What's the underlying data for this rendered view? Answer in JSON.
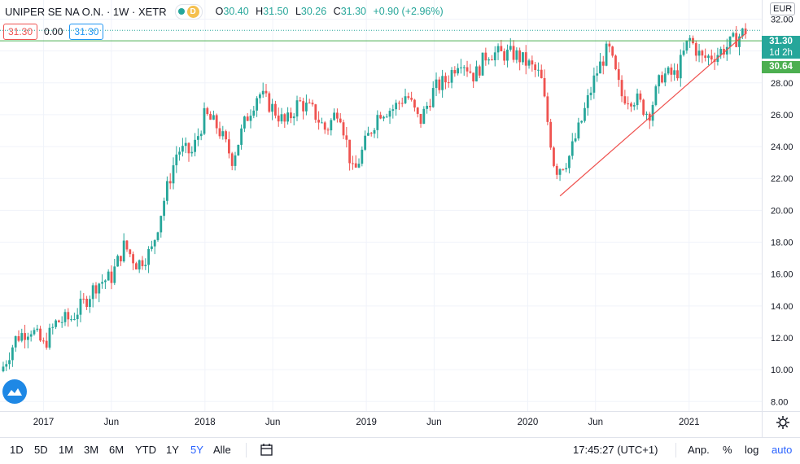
{
  "header": {
    "symbol": "UNIPER SE NA O.N. · 1W · XETR",
    "badge_letter": "D",
    "open_label": "O",
    "open": "30.40",
    "high_label": "H",
    "high": "31.50",
    "low_label": "L",
    "low": "30.26",
    "close_label": "C",
    "close": "31.30",
    "change": "+0.90 (+2.96%)"
  },
  "orders": {
    "sell": "31.30",
    "spread": "0.00",
    "buy": "31.30"
  },
  "currency": "EUR",
  "price_tags": {
    "last": "31.30",
    "countdown": "1d 2h",
    "line": "30.64"
  },
  "toolbar": {
    "ranges": [
      "1D",
      "5D",
      "1M",
      "3M",
      "6M",
      "YTD",
      "1Y",
      "5Y",
      "Alle"
    ],
    "selected": "5Y",
    "clock": "17:45:27 (UTC+1)",
    "adjust": "Anp.",
    "percent": "%",
    "log": "log",
    "auto": "auto"
  },
  "colors": {
    "up": "#26a69a",
    "down": "#ef5350",
    "hline": "#4caf50",
    "trend": "#ef5350",
    "grid": "#f0f3fa"
  },
  "chart_data": {
    "type": "candlestick",
    "interval": "1W",
    "ylim": [
      7.4,
      33.2
    ],
    "y_ticks": [
      "32.00",
      "30.00",
      "28.00",
      "26.00",
      "24.00",
      "22.00",
      "20.00",
      "18.00",
      "16.00",
      "14.00",
      "12.00",
      "10.00",
      "8.00"
    ],
    "x_ticks": [
      {
        "label": "2017",
        "t": 2017.0
      },
      {
        "label": "Jun",
        "t": 2017.42
      },
      {
        "label": "2018",
        "t": 2018.0
      },
      {
        "label": "Jun",
        "t": 2018.42
      },
      {
        "label": "2019",
        "t": 2019.0
      },
      {
        "label": "Jun",
        "t": 2019.42
      },
      {
        "label": "2020",
        "t": 2020.0
      },
      {
        "label": "Jun",
        "t": 2020.42
      },
      {
        "label": "2021",
        "t": 2021.0
      }
    ],
    "xlim": [
      2016.73,
      2021.45
    ],
    "hline": 30.64,
    "last_price": 31.3,
    "trendline": [
      {
        "t": 2020.2,
        "y": 20.9
      },
      {
        "t": 2021.35,
        "y": 31.1
      }
    ],
    "monthly_close": [
      {
        "t": 2016.75,
        "c": 10.2
      },
      {
        "t": 2016.83,
        "c": 12.0
      },
      {
        "t": 2016.92,
        "c": 12.6
      },
      {
        "t": 2017.0,
        "c": 11.5
      },
      {
        "t": 2017.08,
        "c": 13.0
      },
      {
        "t": 2017.17,
        "c": 13.2
      },
      {
        "t": 2017.25,
        "c": 14.2
      },
      {
        "t": 2017.33,
        "c": 15.4
      },
      {
        "t": 2017.42,
        "c": 15.8
      },
      {
        "t": 2017.5,
        "c": 17.8
      },
      {
        "t": 2017.58,
        "c": 16.6
      },
      {
        "t": 2017.67,
        "c": 17.5
      },
      {
        "t": 2017.75,
        "c": 20.8
      },
      {
        "t": 2017.83,
        "c": 23.8
      },
      {
        "t": 2017.92,
        "c": 23.6
      },
      {
        "t": 2018.0,
        "c": 26.0
      },
      {
        "t": 2018.08,
        "c": 25.2
      },
      {
        "t": 2018.17,
        "c": 23.2
      },
      {
        "t": 2018.25,
        "c": 25.6
      },
      {
        "t": 2018.33,
        "c": 27.4
      },
      {
        "t": 2018.42,
        "c": 26.4
      },
      {
        "t": 2018.5,
        "c": 25.4
      },
      {
        "t": 2018.58,
        "c": 26.8
      },
      {
        "t": 2018.67,
        "c": 26.2
      },
      {
        "t": 2018.75,
        "c": 25.0
      },
      {
        "t": 2018.83,
        "c": 26.5
      },
      {
        "t": 2018.92,
        "c": 22.2
      },
      {
        "t": 2019.0,
        "c": 24.4
      },
      {
        "t": 2019.08,
        "c": 26.2
      },
      {
        "t": 2019.17,
        "c": 26.4
      },
      {
        "t": 2019.25,
        "c": 27.3
      },
      {
        "t": 2019.33,
        "c": 25.5
      },
      {
        "t": 2019.42,
        "c": 27.6
      },
      {
        "t": 2019.5,
        "c": 28.2
      },
      {
        "t": 2019.58,
        "c": 29.6
      },
      {
        "t": 2019.67,
        "c": 28.4
      },
      {
        "t": 2019.75,
        "c": 29.9
      },
      {
        "t": 2019.83,
        "c": 29.8
      },
      {
        "t": 2019.92,
        "c": 29.8
      },
      {
        "t": 2020.0,
        "c": 29.2
      },
      {
        "t": 2020.08,
        "c": 28.4
      },
      {
        "t": 2020.17,
        "c": 22.5
      },
      {
        "t": 2020.25,
        "c": 23.2
      },
      {
        "t": 2020.33,
        "c": 25.5
      },
      {
        "t": 2020.42,
        "c": 28.5
      },
      {
        "t": 2020.5,
        "c": 30.2
      },
      {
        "t": 2020.58,
        "c": 27.2
      },
      {
        "t": 2020.67,
        "c": 27.0
      },
      {
        "t": 2020.75,
        "c": 26.0
      },
      {
        "t": 2020.83,
        "c": 28.5
      },
      {
        "t": 2020.92,
        "c": 28.5
      },
      {
        "t": 2021.0,
        "c": 30.8
      },
      {
        "t": 2021.08,
        "c": 29.5
      },
      {
        "t": 2021.17,
        "c": 29.8
      },
      {
        "t": 2021.25,
        "c": 30.4
      },
      {
        "t": 2021.35,
        "c": 31.3
      }
    ]
  }
}
